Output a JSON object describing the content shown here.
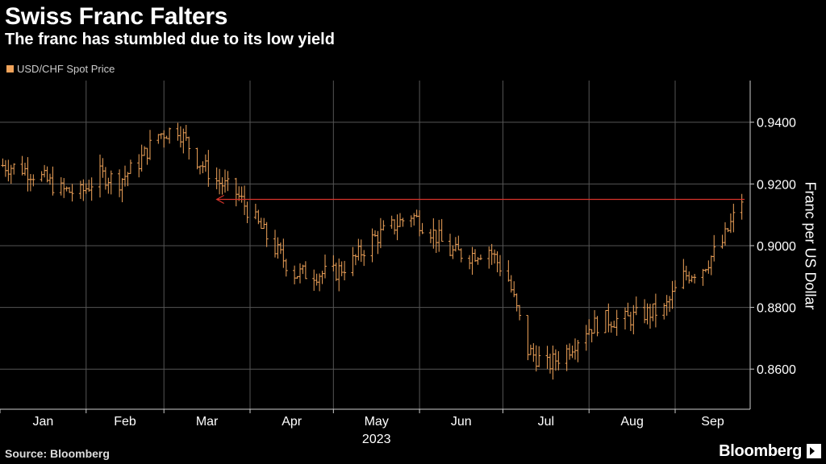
{
  "header": {
    "title": "Swiss Franc Falters",
    "subtitle": "The franc has stumbled due to its low yield"
  },
  "legend": {
    "label": "USD/CHF Spot Price"
  },
  "footer": {
    "source": "Source: Bloomberg",
    "brand": "Bloomberg"
  },
  "colors": {
    "series": "#f0a35a",
    "annotation": "#d9342b",
    "grid": "#555555",
    "background": "#000000"
  },
  "chart_data": {
    "type": "line",
    "style": "ohlc",
    "title": "Swiss Franc Falters",
    "subtitle": "The franc has stumbled due to its low yield",
    "ylabel": "Franc per US Dollar",
    "ylim": [
      0.847,
      0.9535
    ],
    "y_axis_position": "right",
    "yticks": [
      "0.8600",
      "0.8800",
      "0.9000",
      "0.9200",
      "0.9400"
    ],
    "xticks": [
      "Jan",
      "Feb",
      "Mar",
      "Apr",
      "May",
      "Jun",
      "Jul",
      "Aug",
      "Sep"
    ],
    "xlabel_year": "2023",
    "xlim": [
      "2023-01-01",
      "2023-09-28"
    ],
    "grid": true,
    "legend_position": "top-left",
    "series": [
      {
        "name": "USD/CHF Spot Price",
        "points": [
          [
            "2023-01-02",
            0.926
          ],
          [
            "2023-01-09",
            0.925
          ],
          [
            "2023-01-16",
            0.922
          ],
          [
            "2023-01-23",
            0.918
          ],
          [
            "2023-01-30",
            0.917
          ],
          [
            "2023-02-06",
            0.923
          ],
          [
            "2023-02-13",
            0.921
          ],
          [
            "2023-02-20",
            0.927
          ],
          [
            "2023-02-27",
            0.936
          ],
          [
            "2023-03-06",
            0.938
          ],
          [
            "2023-03-13",
            0.928
          ],
          [
            "2023-03-20",
            0.921
          ],
          [
            "2023-03-27",
            0.917
          ],
          [
            "2023-04-03",
            0.908
          ],
          [
            "2023-04-10",
            0.899
          ],
          [
            "2023-04-17",
            0.891
          ],
          [
            "2023-04-24",
            0.891
          ],
          [
            "2023-05-01",
            0.891
          ],
          [
            "2023-05-08",
            0.895
          ],
          [
            "2023-05-15",
            0.902
          ],
          [
            "2023-05-22",
            0.906
          ],
          [
            "2023-05-29",
            0.91
          ],
          [
            "2023-06-05",
            0.905
          ],
          [
            "2023-06-12",
            0.898
          ],
          [
            "2023-06-19",
            0.897
          ],
          [
            "2023-06-26",
            0.899
          ],
          [
            "2023-07-03",
            0.889
          ],
          [
            "2023-07-10",
            0.866
          ],
          [
            "2023-07-17",
            0.861
          ],
          [
            "2023-07-24",
            0.866
          ],
          [
            "2023-07-31",
            0.873
          ],
          [
            "2023-08-07",
            0.876
          ],
          [
            "2023-08-14",
            0.876
          ],
          [
            "2023-08-21",
            0.878
          ],
          [
            "2023-08-28",
            0.879
          ],
          [
            "2023-09-04",
            0.89
          ],
          [
            "2023-09-11",
            0.893
          ],
          [
            "2023-09-18",
            0.901
          ],
          [
            "2023-09-25",
            0.915
          ]
        ]
      }
    ],
    "annotations": [
      {
        "type": "arrow",
        "from": [
          "2023-09-26",
          0.915
        ],
        "to": [
          "2023-03-20",
          0.915
        ]
      }
    ]
  }
}
